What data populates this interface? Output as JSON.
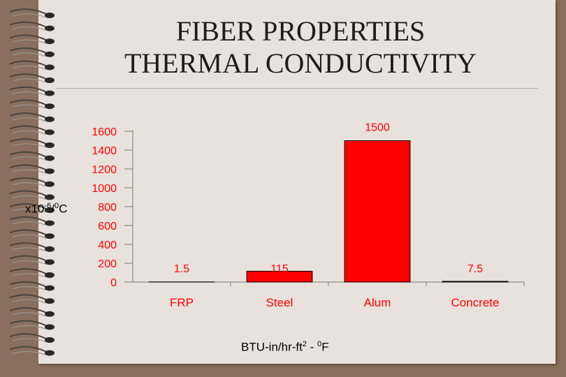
{
  "slide": {
    "title_line1": "FIBER PROPERTIES",
    "title_line2": "THERMAL CONDUCTIVITY"
  },
  "colors": {
    "bar": "#ff0000",
    "tick_text": "#ff0000",
    "axis": "#7a7a7a"
  },
  "chart_data": {
    "type": "bar",
    "categories": [
      "FRP",
      "Steel",
      "Alum",
      "Concrete"
    ],
    "values": [
      1.5,
      115,
      1500,
      7.5
    ],
    "value_labels": [
      "1.5",
      "115",
      "1500",
      "7.5"
    ],
    "yticks": [
      "0",
      "200",
      "400",
      "600",
      "800",
      "1000",
      "1200",
      "1400",
      "1600"
    ],
    "ylim": [
      0,
      1600
    ],
    "ylabel_base": "x10",
    "ylabel_exp": "-6",
    "ylabel_unit_pre": "/",
    "ylabel_unit_sup": "0",
    "ylabel_unit": "C",
    "xlabel_pre": "BTU-in/hr-ft",
    "xlabel_sup": "2",
    "xlabel_mid": " - ",
    "xlabel_sup2": "0",
    "xlabel_post": "F",
    "grid": false,
    "legend": "none"
  }
}
